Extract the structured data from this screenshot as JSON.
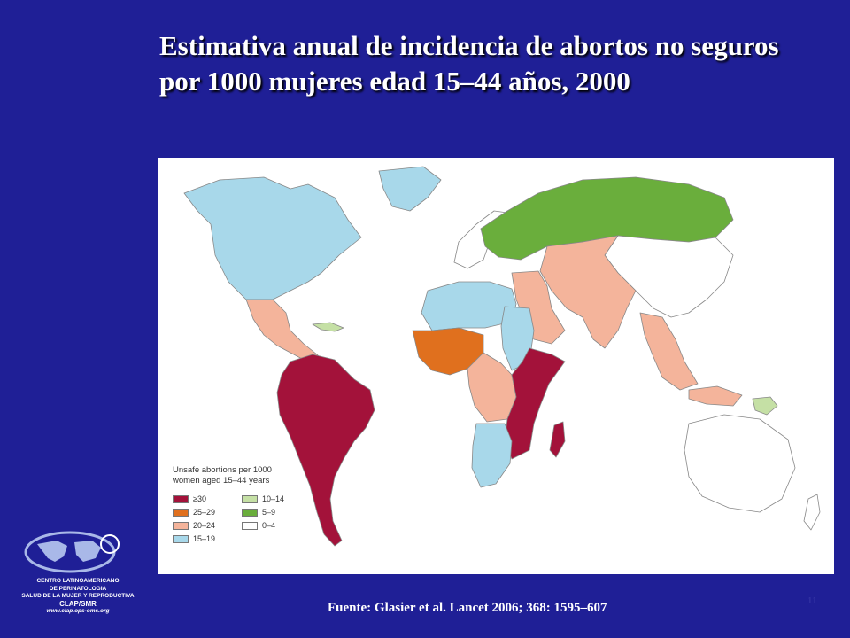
{
  "slide": {
    "title": "Estimativa anual de incidencia de abortos no seguros por 1000 mujeres edad 15–44 años, 2000",
    "source": "Fuente: Glasier et al. Lancet 2006; 368: 1595–607",
    "page_number": "11"
  },
  "legend": {
    "title_line1": "Unsafe abortions per 1000",
    "title_line2": "women aged 15–44 years",
    "items": [
      {
        "label": "≥30",
        "color": "#a3123a"
      },
      {
        "label": "10–14",
        "color": "#c5e0a5"
      },
      {
        "label": "25–29",
        "color": "#e0701e"
      },
      {
        "label": "5–9",
        "color": "#6aae3c"
      },
      {
        "label": "20–24",
        "color": "#f4b49b"
      },
      {
        "label": "0–4",
        "color": "#ffffff"
      },
      {
        "label": "15–19",
        "color": "#a8d8ea"
      }
    ]
  },
  "logo": {
    "line1": "CENTRO LATINOAMERICANO",
    "line2": "DE PERINATOLOGIA",
    "line3": "SALUD DE LA MUJER Y REPRODUCTIVA",
    "line4": "CLAP/SMR",
    "line5": "www.clap.ops-oms.org"
  },
  "map_regions": [
    {
      "name": "South America",
      "category": "≥30",
      "color": "#a3123a"
    },
    {
      "name": "Central America & Mexico",
      "category": "20–24",
      "color": "#f4b49b"
    },
    {
      "name": "Caribbean",
      "category": "10–14",
      "color": "#c5e0a5"
    },
    {
      "name": "North Africa",
      "category": "15–19",
      "color": "#a8d8ea"
    },
    {
      "name": "West Africa",
      "category": "25–29",
      "color": "#e0701e"
    },
    {
      "name": "Middle Africa",
      "category": "20–24",
      "color": "#f4b49b"
    },
    {
      "name": "East Africa",
      "category": "≥30",
      "color": "#a3123a"
    },
    {
      "name": "Southern Africa",
      "category": "15–19",
      "color": "#a8d8ea"
    },
    {
      "name": "Western Asia",
      "category": "10–14",
      "color": "#c5e0a5"
    },
    {
      "name": "Eastern Europe",
      "category": "5–9",
      "color": "#6aae3c"
    },
    {
      "name": "South-central Asia",
      "category": "20–24",
      "color": "#f4b49b"
    },
    {
      "name": "South-east Asia",
      "category": "20–24",
      "color": "#f4b49b"
    },
    {
      "name": "Melanesia",
      "category": "15–19",
      "color": "#a8d8ea"
    },
    {
      "name": "North America, Western Europe, East Asia, Oceania",
      "category": "0–4",
      "color": "#ffffff"
    }
  ]
}
